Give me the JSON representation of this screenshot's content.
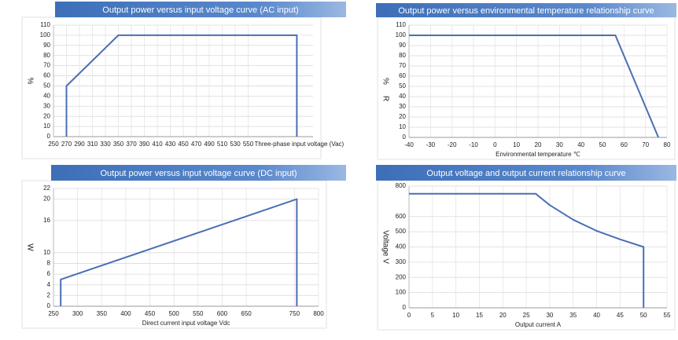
{
  "chart_data": [
    {
      "type": "line",
      "title": "Output power versus input voltage curve (AC input)",
      "ylabel": "%",
      "xlabel": "Three-phase input voltage (Vac)",
      "x": [
        270,
        270,
        350,
        625,
        625
      ],
      "series": [
        {
          "name": "Output power",
          "color": "#4a6fb5",
          "values": [
            0,
            50,
            100,
            100,
            0
          ]
        }
      ],
      "xlim": [
        250,
        650
      ],
      "xticks": [
        250,
        270,
        290,
        310,
        330,
        350,
        370,
        390,
        410,
        430,
        450,
        470,
        490,
        510,
        530,
        550
      ],
      "ylim": [
        0,
        110
      ],
      "yticks": [
        0,
        10,
        20,
        30,
        40,
        50,
        60,
        70,
        80,
        90,
        100,
        110
      ],
      "grid": true
    },
    {
      "type": "line",
      "title": "Output power versus environmental temperature relationship curve",
      "ylabel": "%",
      "annotation": "R",
      "xlabel": "Environmental temperature ℃",
      "x": [
        -40,
        56,
        76
      ],
      "series": [
        {
          "name": "Output power",
          "color": "#4a6fb5",
          "values": [
            100,
            100,
            0
          ]
        }
      ],
      "xlim": [
        -40,
        80
      ],
      "xticks": [
        -40,
        -30,
        -20,
        -10,
        0,
        10,
        20,
        30,
        40,
        50,
        60,
        70,
        80
      ],
      "ylim": [
        0,
        110
      ],
      "yticks": [
        0,
        10,
        20,
        30,
        40,
        50,
        60,
        70,
        80,
        90,
        100,
        110
      ],
      "grid": true
    },
    {
      "type": "line",
      "title": "Output power versus input voltage curve (DC input)",
      "ylabel": "W",
      "xlabel": "Direct current input voltage Vdc",
      "x": [
        265,
        265,
        755,
        755
      ],
      "series": [
        {
          "name": "Output power",
          "color": "#4a6fb5",
          "values": [
            0,
            5,
            20,
            0
          ]
        }
      ],
      "xlim": [
        250,
        800
      ],
      "xticks": [
        250,
        300,
        350,
        400,
        450,
        500,
        550,
        600,
        650,
        750,
        800
      ],
      "ylim": [
        0,
        22
      ],
      "yticks": [
        0,
        2,
        4,
        6,
        8,
        10,
        16,
        20,
        22
      ],
      "grid": true
    },
    {
      "type": "line",
      "title": "Output voltage and output current relationship curve",
      "ylabel": "Voltage V",
      "xlabel": "Output current A",
      "x": [
        0,
        27,
        30,
        35,
        40,
        45,
        50,
        50
      ],
      "series": [
        {
          "name": "Output voltage",
          "color": "#4a6fb5",
          "values": [
            750,
            750,
            675,
            579,
            506,
            450,
            400,
            0
          ]
        }
      ],
      "xlim": [
        0,
        55
      ],
      "xticks": [
        0,
        5,
        10,
        15,
        20,
        25,
        30,
        35,
        40,
        45,
        50,
        55
      ],
      "ylim": [
        0,
        800
      ],
      "yticks": [
        0,
        100,
        200,
        300,
        400,
        500,
        600,
        800
      ],
      "grid": true
    }
  ]
}
